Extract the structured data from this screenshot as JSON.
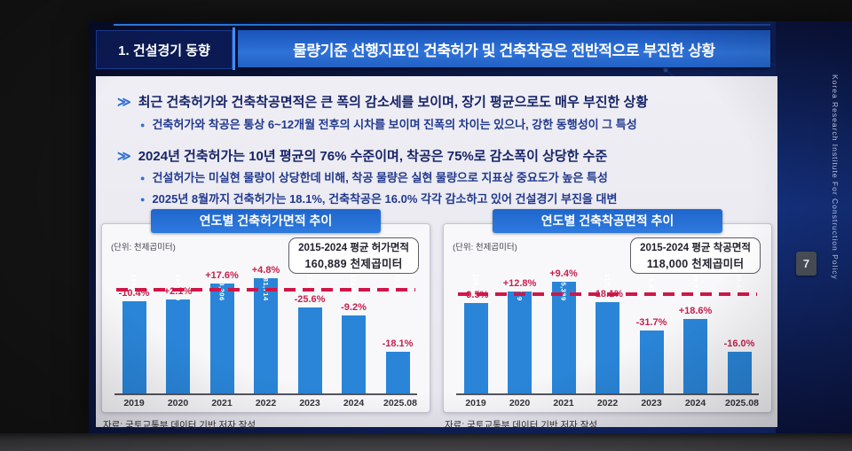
{
  "header": {
    "section_label": "1. 건설경기 동향",
    "title": "물량기준 선행지표인 건축허가 및 건축착공은 전반적으로 부진한 상황"
  },
  "sidebar": {
    "institute_name": "Korea Research Institute For Construction Policy",
    "page_number": "7"
  },
  "bullets": [
    {
      "level": 1,
      "text": "최근 건축허가와 건축착공면적은 큰 폭의 감소세를 보이며, 장기 평균으로도 매우 부진한 상황"
    },
    {
      "level": 2,
      "text": "건축허가와 착공은 통상 6~12개월 전후의 시차를 보이며 진폭의 차이는 있으나, 강한 동행성이 그 특성"
    },
    {
      "level": 1,
      "text": "2024년 건축허가는 10년 평균의 76% 수준이며, 착공은 75%로 감소폭이 상당한 수준"
    },
    {
      "level": 2,
      "text": "건설허가는 미실현 물량이 상당한데 비해, 착공 물량은 실현 물량으로 지표상 중요도가 높은 특성"
    },
    {
      "level": 2,
      "text": "2025년 8월까지 건축허가는 18.1%, 건축착공은 16.0% 각각 감소하고 있어 건설경기 부진을 대변"
    }
  ],
  "chart_data": [
    {
      "type": "bar",
      "title": "연도별 건축허가면적 추이",
      "unit_label": "(단위: 천제곱미터)",
      "avg_box_line1": "2015-2024 평균 허가면적",
      "avg_box_line2": "160,889 천제곱미터",
      "categories": [
        "2019",
        "2020",
        "2021",
        "2022",
        "2023",
        "2024",
        "2025.08"
      ],
      "values": [
        144293,
        147330,
        173206,
        181714,
        135080,
        122671,
        65895
      ],
      "value_labels": [
        "144,293",
        "147,330",
        "173,206",
        "181,714",
        "135,080",
        "122,671",
        "65,895"
      ],
      "pct_labels": [
        "-10.4%",
        "+2.1%",
        "+17.6%",
        "+4.8%",
        "-25.6%",
        "-9.2%",
        "-18.1%"
      ],
      "average_value": 160889,
      "ylim": [
        0,
        195000
      ],
      "legend": "none",
      "grid": false,
      "source": "자료: 국토교통부 데이터 기반 저자 작성"
    },
    {
      "type": "bar",
      "title": "연도별 건축착공면적 추이",
      "unit_label": "(단위: 천제곱미터)",
      "avg_box_line1": "2015-2024 평균 착공면적",
      "avg_box_line2": "118,000 천제곱미터",
      "categories": [
        "2019",
        "2020",
        "2021",
        "2022",
        "2023",
        "2024",
        "2025.08"
      ],
      "values": [
        109671,
        123709,
        135339,
        110840,
        75678,
        89776,
        50430
      ],
      "value_labels": [
        "109,671",
        "123,709",
        "135,339",
        "110,840",
        "75,678",
        "89,776",
        "50,430"
      ],
      "pct_labels": [
        "-9.5%",
        "+12.8%",
        "+9.4%",
        "-18.1%",
        "-31.7%",
        "+18.6%",
        "-16.0%"
      ],
      "average_value": 118000,
      "ylim": [
        0,
        150000
      ],
      "legend": "none",
      "grid": false,
      "source": "자료: 국토교통부 데이터 기반 저자 작성"
    }
  ],
  "colors": {
    "bar_blue": "#2a85d8",
    "pct_red": "#c5214b",
    "avg_line_red": "#d01648",
    "title_bar_blue": "#2e72d8",
    "navy_text": "#172468"
  }
}
